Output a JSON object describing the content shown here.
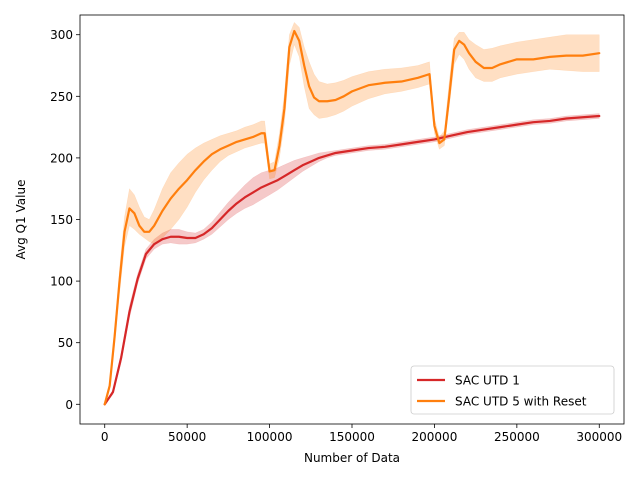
{
  "chart_data": {
    "type": "line",
    "title": "",
    "xlabel": "Number of Data",
    "ylabel": "Avg Q1 Value",
    "xlim": [
      -15000,
      315000
    ],
    "ylim": [
      -16,
      316
    ],
    "xticks": [
      0,
      50000,
      100000,
      150000,
      200000,
      250000,
      300000
    ],
    "xtick_labels": [
      "0",
      "50000",
      "100000",
      "150000",
      "200000",
      "250000",
      "300000"
    ],
    "yticks": [
      0,
      50,
      100,
      150,
      200,
      250,
      300
    ],
    "ytick_labels": [
      "0",
      "50",
      "100",
      "150",
      "200",
      "250",
      "300"
    ],
    "grid": false,
    "legend_position": "lower right",
    "series": [
      {
        "name": "SAC UTD 1",
        "color": "#d62728",
        "band_color": "#d62728",
        "x": [
          0,
          5000,
          10000,
          15000,
          20000,
          25000,
          30000,
          35000,
          40000,
          45000,
          50000,
          55000,
          60000,
          65000,
          70000,
          75000,
          80000,
          85000,
          90000,
          95000,
          100000,
          105000,
          110000,
          115000,
          120000,
          125000,
          130000,
          135000,
          140000,
          145000,
          150000,
          160000,
          170000,
          180000,
          190000,
          200000,
          210000,
          220000,
          230000,
          240000,
          250000,
          260000,
          270000,
          280000,
          290000,
          300000
        ],
        "values": [
          0,
          10,
          38,
          75,
          102,
          122,
          130,
          134,
          136,
          136,
          135,
          135,
          138,
          143,
          150,
          157,
          163,
          168,
          172,
          176,
          179,
          182,
          186,
          190,
          194,
          197,
          200,
          202,
          204,
          205,
          206,
          208,
          209,
          211,
          213,
          215,
          218,
          221,
          223,
          225,
          227,
          229,
          230,
          232,
          233,
          234
        ],
        "lower": [
          0,
          8,
          34,
          70,
          98,
          118,
          126,
          130,
          131,
          130,
          130,
          131,
          134,
          138,
          144,
          150,
          155,
          159,
          162,
          166,
          170,
          174,
          179,
          184,
          189,
          193,
          197,
          200,
          202,
          203,
          204,
          206,
          207,
          209,
          211,
          213,
          216,
          219,
          221,
          223,
          225,
          227,
          228,
          230,
          231,
          232
        ],
        "upper": [
          0,
          12,
          42,
          80,
          106,
          126,
          134,
          139,
          142,
          142,
          140,
          139,
          142,
          148,
          156,
          164,
          171,
          178,
          184,
          188,
          190,
          192,
          195,
          198,
          200,
          202,
          204,
          205,
          206,
          207,
          208,
          210,
          211,
          213,
          215,
          217,
          220,
          223,
          225,
          227,
          229,
          231,
          232,
          234,
          235,
          236
        ]
      },
      {
        "name": "SAC UTD 5 with Reset",
        "color": "#ff7f0e",
        "band_color": "#ff7f0e",
        "x": [
          0,
          3000,
          6000,
          9000,
          12000,
          15000,
          18000,
          21000,
          24000,
          27000,
          30000,
          35000,
          40000,
          45000,
          50000,
          55000,
          60000,
          65000,
          70000,
          75000,
          80000,
          85000,
          90000,
          95000,
          97000,
          100000,
          103000,
          106000,
          109000,
          112000,
          115000,
          118000,
          121000,
          124000,
          127000,
          130000,
          135000,
          140000,
          145000,
          150000,
          160000,
          170000,
          180000,
          190000,
          197000,
          200000,
          203000,
          206000,
          209000,
          212000,
          215000,
          218000,
          221000,
          225000,
          230000,
          235000,
          240000,
          250000,
          260000,
          270000,
          280000,
          290000,
          300000
        ],
        "values": [
          0,
          15,
          55,
          100,
          140,
          159,
          155,
          145,
          140,
          140,
          145,
          157,
          167,
          175,
          182,
          190,
          197,
          203,
          207,
          210,
          213,
          215,
          217,
          220,
          220,
          189,
          190,
          210,
          240,
          290,
          303,
          295,
          275,
          258,
          249,
          246,
          246,
          247,
          250,
          254,
          259,
          261,
          262,
          265,
          268,
          226,
          212,
          215,
          250,
          288,
          295,
          292,
          285,
          278,
          273,
          273,
          276,
          280,
          280,
          282,
          283,
          283,
          285
        ],
        "lower": [
          0,
          12,
          48,
          90,
          128,
          145,
          142,
          138,
          135,
          132,
          130,
          135,
          142,
          150,
          160,
          172,
          182,
          190,
          197,
          202,
          205,
          208,
          210,
          212,
          212,
          183,
          184,
          200,
          228,
          275,
          292,
          282,
          258,
          240,
          235,
          232,
          233,
          235,
          238,
          242,
          248,
          252,
          254,
          257,
          260,
          220,
          207,
          210,
          242,
          276,
          284,
          280,
          272,
          265,
          262,
          262,
          265,
          268,
          270,
          272,
          271,
          270,
          270
        ],
        "upper": [
          0,
          18,
          62,
          110,
          152,
          175,
          170,
          160,
          152,
          150,
          158,
          175,
          188,
          196,
          203,
          208,
          212,
          215,
          218,
          220,
          222,
          225,
          227,
          230,
          230,
          195,
          197,
          220,
          252,
          300,
          310,
          306,
          290,
          278,
          268,
          262,
          260,
          261,
          263,
          266,
          270,
          272,
          273,
          275,
          278,
          232,
          217,
          222,
          262,
          297,
          302,
          302,
          296,
          292,
          288,
          289,
          291,
          294,
          296,
          298,
          300,
          300,
          300
        ]
      }
    ]
  }
}
